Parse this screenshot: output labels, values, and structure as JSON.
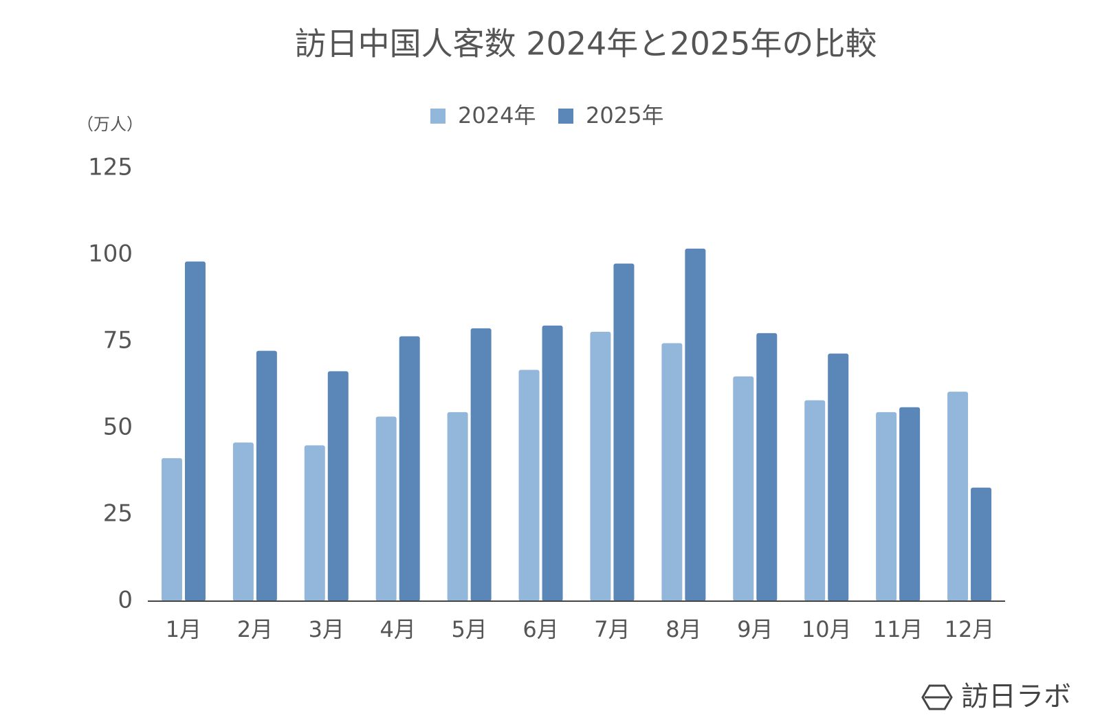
{
  "chart_data": {
    "type": "bar",
    "title": "訪日中国人客数 2024年と2025年の比較",
    "y_unit_label": "（万人）",
    "categories": [
      "1月",
      "2月",
      "3月",
      "4月",
      "5月",
      "6月",
      "7月",
      "8月",
      "9月",
      "10月",
      "11月",
      "12月"
    ],
    "series": [
      {
        "name": "2024年",
        "color": "#93b7da",
        "values": [
          41.3,
          45.8,
          45.0,
          53.3,
          54.6,
          66.8,
          77.8,
          74.5,
          64.9,
          58.0,
          54.6,
          60.5
        ]
      },
      {
        "name": "2025年",
        "color": "#5b86b8",
        "values": [
          98.1,
          72.3,
          66.4,
          76.5,
          78.8,
          79.6,
          97.5,
          101.8,
          77.4,
          71.5,
          56.0,
          32.8
        ]
      }
    ],
    "ylim": [
      0,
      125
    ],
    "yticks": [
      0,
      25,
      50,
      75,
      100,
      125
    ],
    "grid": false,
    "legend": "top"
  },
  "brand": "訪日ラボ"
}
